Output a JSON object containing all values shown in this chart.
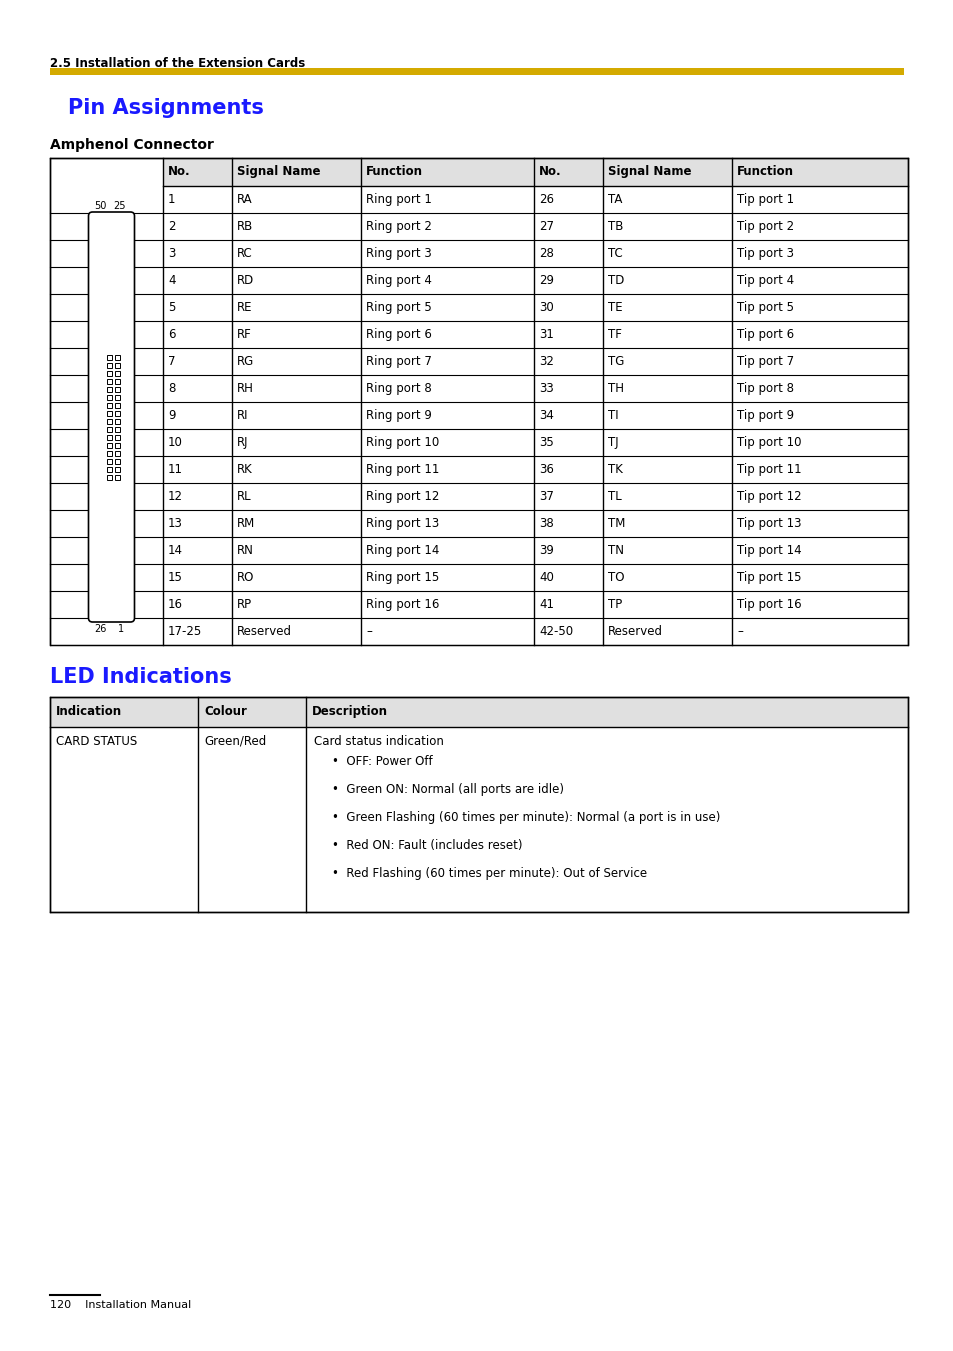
{
  "page_bg": "#ffffff",
  "header_text": "2.5 Installation of the Extension Cards",
  "header_color": "#000000",
  "header_fontsize": 8.5,
  "gold_bar_color": "#D4AA00",
  "section1_title": "Pin Assignments",
  "section1_color": "#1a1aff",
  "section1_fontsize": 15,
  "subsection1_title": "Amphenol Connector",
  "subsection1_fontsize": 10,
  "section2_title": "LED Indications",
  "section2_color": "#1a1aff",
  "section2_fontsize": 15,
  "pin_table_headers": [
    "No.",
    "Signal Name",
    "Function",
    "No.",
    "Signal Name",
    "Function"
  ],
  "pin_rows": [
    [
      "1",
      "RA",
      "Ring port 1",
      "26",
      "TA",
      "Tip port 1"
    ],
    [
      "2",
      "RB",
      "Ring port 2",
      "27",
      "TB",
      "Tip port 2"
    ],
    [
      "3",
      "RC",
      "Ring port 3",
      "28",
      "TC",
      "Tip port 3"
    ],
    [
      "4",
      "RD",
      "Ring port 4",
      "29",
      "TD",
      "Tip port 4"
    ],
    [
      "5",
      "RE",
      "Ring port 5",
      "30",
      "TE",
      "Tip port 5"
    ],
    [
      "6",
      "RF",
      "Ring port 6",
      "31",
      "TF",
      "Tip port 6"
    ],
    [
      "7",
      "RG",
      "Ring port 7",
      "32",
      "TG",
      "Tip port 7"
    ],
    [
      "8",
      "RH",
      "Ring port 8",
      "33",
      "TH",
      "Tip port 8"
    ],
    [
      "9",
      "RI",
      "Ring port 9",
      "34",
      "TI",
      "Tip port 9"
    ],
    [
      "10",
      "RJ",
      "Ring port 10",
      "35",
      "TJ",
      "Tip port 10"
    ],
    [
      "11",
      "RK",
      "Ring port 11",
      "36",
      "TK",
      "Tip port 11"
    ],
    [
      "12",
      "RL",
      "Ring port 12",
      "37",
      "TL",
      "Tip port 12"
    ],
    [
      "13",
      "RM",
      "Ring port 13",
      "38",
      "TM",
      "Tip port 13"
    ],
    [
      "14",
      "RN",
      "Ring port 14",
      "39",
      "TN",
      "Tip port 14"
    ],
    [
      "15",
      "RO",
      "Ring port 15",
      "40",
      "TO",
      "Tip port 15"
    ],
    [
      "16",
      "RP",
      "Ring port 16",
      "41",
      "TP",
      "Tip port 16"
    ],
    [
      "17-25",
      "Reserved",
      "–",
      "42-50",
      "Reserved",
      "–"
    ]
  ],
  "led_table_headers": [
    "Indication",
    "Colour",
    "Description"
  ],
  "led_bullets": [
    "OFF: Power Off",
    "Green ON: Normal (all ports are idle)",
    "Green Flashing (60 times per minute): Normal (a port is in use)",
    "Red ON: Fault (includes reset)",
    "Red Flashing (60 times per minute): Out of Service"
  ],
  "footer_text": "120    Installation Manual",
  "footer_fontsize": 8,
  "table_header_bg": "#e0e0e0",
  "table_border_color": "#000000",
  "text_color": "#000000"
}
